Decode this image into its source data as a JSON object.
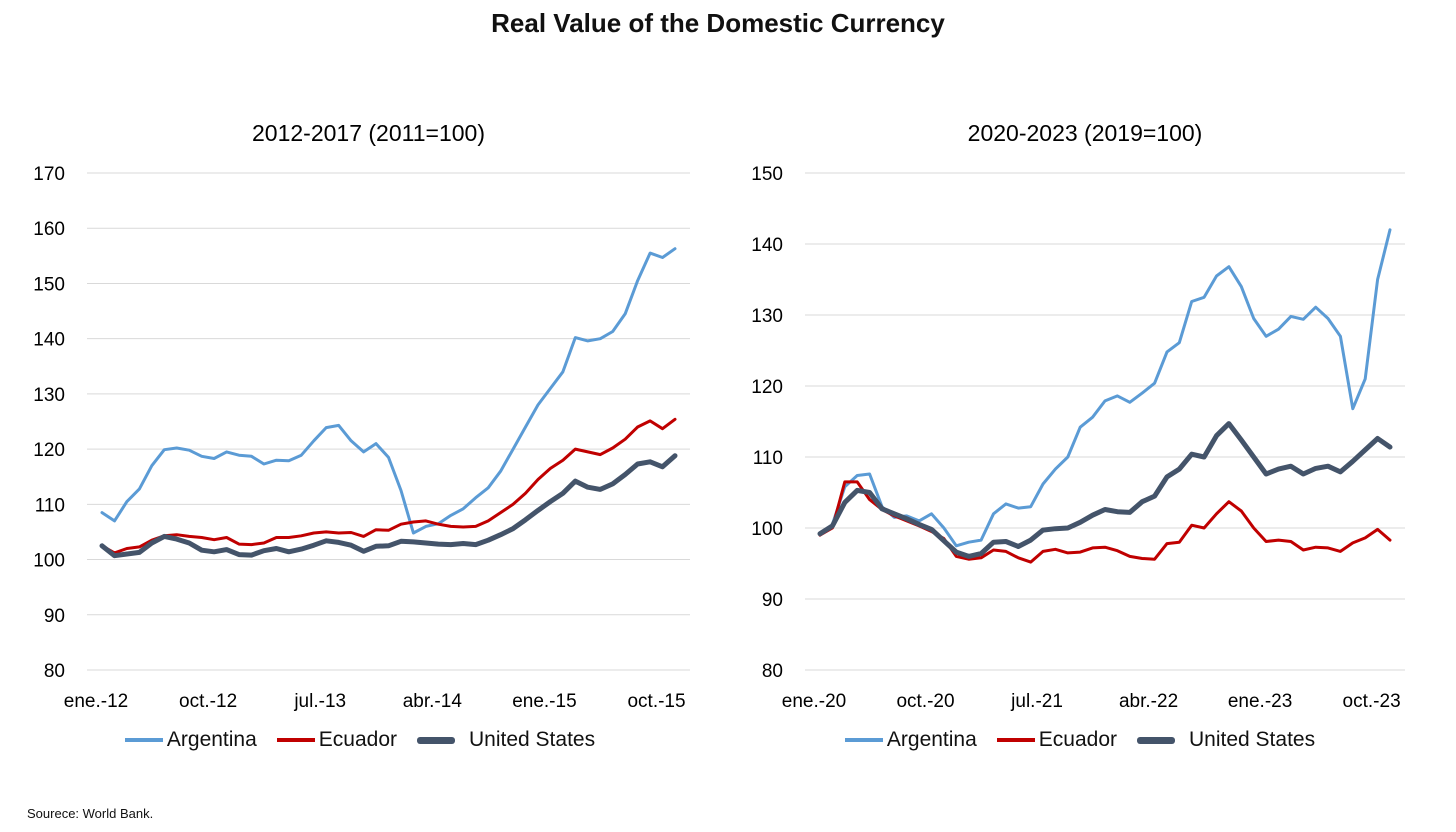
{
  "title": "Real Value of the Domestic Currency",
  "source": "Sourece: World Bank.",
  "colors": {
    "Argentina": "#5b9bd5",
    "Ecuador": "#c00000",
    "United States": "#44546a"
  },
  "chart_data": [
    {
      "type": "line",
      "title": "2012-2017 (2011=100)",
      "xlabel": "",
      "ylabel": "",
      "ylim": [
        80,
        170
      ],
      "yticks": [
        80,
        90,
        100,
        110,
        120,
        130,
        140,
        150,
        160,
        170
      ],
      "x_tick_labels": [
        "ene.-12",
        "oct.-12",
        "jul.-13",
        "abr.-14",
        "ene.-15",
        "oct.-15"
      ],
      "x_tick_index": [
        0,
        9,
        18,
        27,
        36,
        45
      ],
      "grid": true,
      "legend": "bottom",
      "series": [
        {
          "name": "Argentina",
          "values": [
            108.5,
            107,
            110.5,
            112.8,
            117,
            119.9,
            120.2,
            119.8,
            118.7,
            118.3,
            119.5,
            118.9,
            118.7,
            117.3,
            118,
            117.9,
            118.9,
            121.5,
            123.9,
            124.3,
            121.5,
            119.5,
            121,
            118.5,
            112.5,
            104.8,
            106,
            106.5,
            108,
            109.2,
            111.2,
            113,
            116,
            120,
            124,
            128,
            131,
            134,
            140.2,
            139.6,
            140,
            141.3,
            144.5,
            150.5,
            155.5,
            154.7,
            156.3
          ]
        },
        {
          "name": "Ecuador",
          "values": [
            102.5,
            101.2,
            102,
            102.3,
            103.5,
            104.3,
            104.5,
            104.2,
            104,
            103.6,
            104,
            102.8,
            102.7,
            103,
            104,
            104,
            104.3,
            104.8,
            105,
            104.8,
            104.9,
            104.2,
            105.4,
            105.3,
            106.4,
            106.8,
            107,
            106.4,
            106,
            105.9,
            106,
            107,
            108.5,
            110,
            112,
            114.5,
            116.5,
            118,
            120,
            119.5,
            119,
            120.2,
            121.8,
            124,
            125.1,
            123.7,
            125.4
          ]
        },
        {
          "name": "United States",
          "values": [
            102.5,
            100.7,
            101,
            101.3,
            103,
            104.2,
            103.7,
            103,
            101.7,
            101.4,
            101.8,
            100.9,
            100.8,
            101.6,
            102,
            101.4,
            101.9,
            102.6,
            103.4,
            103.1,
            102.6,
            101.5,
            102.4,
            102.5,
            103.3,
            103.2,
            103,
            102.8,
            102.7,
            102.9,
            102.7,
            103.5,
            104.5,
            105.6,
            107.2,
            108.9,
            110.5,
            112,
            114.2,
            113.1,
            112.7,
            113.7,
            115.4,
            117.3,
            117.7,
            116.8,
            118.8
          ]
        }
      ]
    },
    {
      "type": "line",
      "title": "2020-2023 (2019=100)",
      "xlabel": "",
      "ylabel": "",
      "ylim": [
        80,
        150
      ],
      "yticks": [
        80,
        90,
        100,
        110,
        120,
        130,
        140,
        150
      ],
      "x_tick_labels": [
        "ene.-20",
        "oct.-20",
        "jul.-21",
        "abr.-22",
        "ene.-23",
        "oct.-23"
      ],
      "x_tick_index": [
        0,
        9,
        18,
        27,
        36,
        45
      ],
      "grid": true,
      "legend": "bottom",
      "series": [
        {
          "name": "Argentina",
          "values": [
            99,
            100.5,
            105.8,
            107.4,
            107.6,
            103,
            101.5,
            101.7,
            101,
            102,
            100,
            97.5,
            98,
            98.3,
            102,
            103.4,
            102.8,
            103,
            106.2,
            108.3,
            110,
            114.2,
            115.6,
            117.9,
            118.6,
            117.7,
            119,
            120.4,
            124.8,
            126.1,
            131.9,
            132.5,
            135.5,
            136.8,
            134,
            129.5,
            127,
            128,
            129.8,
            129.4,
            131.1,
            129.5,
            127,
            116.8,
            121,
            135,
            142
          ]
        },
        {
          "name": "Ecuador",
          "values": [
            99,
            100,
            106.5,
            106.5,
            104,
            102.6,
            101.7,
            101,
            100.3,
            99.5,
            98.5,
            96,
            95.6,
            95.8,
            96.9,
            96.7,
            95.8,
            95.2,
            96.7,
            97,
            96.5,
            96.6,
            97.2,
            97.3,
            96.8,
            96,
            95.7,
            95.6,
            97.8,
            98,
            100.4,
            100,
            102,
            103.7,
            102.4,
            100,
            98.1,
            98.3,
            98.1,
            96.9,
            97.3,
            97.2,
            96.7,
            97.9,
            98.6,
            99.8,
            98.3
          ]
        },
        {
          "name": "United States",
          "values": [
            99.2,
            100.3,
            103.6,
            105.3,
            105,
            102.7,
            102,
            101.3,
            100.5,
            99.8,
            98.2,
            96.6,
            96,
            96.4,
            98,
            98.1,
            97.4,
            98.3,
            99.7,
            99.9,
            100,
            100.8,
            101.8,
            102.6,
            102.3,
            102.2,
            103.7,
            104.5,
            107.2,
            108.3,
            110.4,
            110,
            113,
            114.7,
            112.4,
            110,
            107.6,
            108.3,
            108.7,
            107.6,
            108.4,
            108.7,
            107.9,
            109.4,
            111,
            112.6,
            111.4
          ]
        }
      ]
    }
  ]
}
